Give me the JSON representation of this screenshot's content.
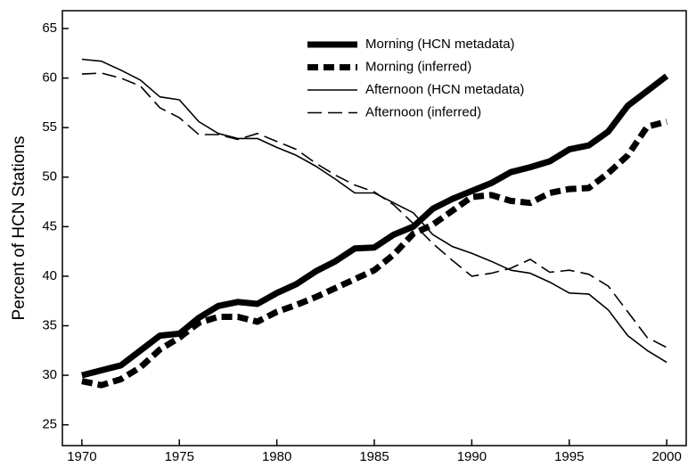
{
  "chart_data": {
    "type": "line",
    "y_label": "Percent of HCN Stations",
    "x": [
      1970,
      1971,
      1972,
      1973,
      1974,
      1975,
      1976,
      1977,
      1978,
      1979,
      1980,
      1981,
      1982,
      1983,
      1984,
      1985,
      1986,
      1987,
      1988,
      1989,
      1990,
      1991,
      1992,
      1993,
      1994,
      1995,
      1996,
      1997,
      1998,
      1999,
      2000
    ],
    "xlim": [
      1969,
      2001
    ],
    "xticks": [
      1970,
      1975,
      1980,
      1985,
      1990,
      1995,
      2000
    ],
    "ylim": [
      22.9,
      66.8
    ],
    "yticks": [
      25,
      30,
      35,
      40,
      45,
      50,
      55,
      60,
      65
    ],
    "legend": "top-right",
    "series": [
      {
        "name": "Morning (HCN metadata)",
        "color": "#000000",
        "line_width": 7,
        "dashed": false,
        "values": [
          30,
          30.5,
          31,
          32.5,
          34,
          34.2,
          35.8,
          37,
          37.4,
          37.2,
          38.3,
          39.2,
          40.5,
          41.5,
          42.8,
          42.9,
          44.2,
          45,
          46.8,
          47.8,
          48.6,
          49.4,
          50.5,
          51,
          51.6,
          52.8,
          53.2,
          54.6,
          57.2,
          58.7,
          60.2
        ]
      },
      {
        "name": "Morning (inferred)",
        "color": "#000000",
        "line_width": 7,
        "dashed": true,
        "values": [
          29.4,
          29,
          29.6,
          30.8,
          32.6,
          33.8,
          35.3,
          35.9,
          35.9,
          35.4,
          36.4,
          37.1,
          37.9,
          38.8,
          39.7,
          40.6,
          42.2,
          44.3,
          45.2,
          46.6,
          48,
          48.2,
          47.6,
          47.4,
          48.4,
          48.8,
          48.9,
          50.4,
          52.2,
          55.1,
          55.6
        ]
      },
      {
        "name": "Afternoon (HCN metadata)",
        "color": "#000000",
        "line_width": 1.6,
        "dashed": false,
        "values": [
          61.9,
          61.7,
          60.8,
          59.8,
          58.1,
          57.8,
          55.6,
          54.4,
          53.9,
          53.9,
          53,
          52.2,
          51.1,
          49.8,
          48.4,
          48.4,
          47.4,
          46.4,
          44.2,
          43,
          42.3,
          41.5,
          40.6,
          40.3,
          39.4,
          38.3,
          38.2,
          36.6,
          34,
          32.5,
          31.3
        ]
      },
      {
        "name": "Afternoon (inferred)",
        "color": "#000000",
        "line_width": 1.6,
        "dashed": true,
        "values": [
          60.4,
          60.5,
          60,
          59.2,
          57,
          56,
          54.3,
          54.3,
          53.8,
          54.4,
          53.6,
          52.8,
          51.4,
          50.2,
          49.2,
          48.5,
          47.2,
          45.3,
          43.3,
          41.6,
          40,
          40.3,
          40.8,
          41.7,
          40.4,
          40.6,
          40.2,
          39,
          36.4,
          33.8,
          32.8
        ]
      }
    ]
  }
}
